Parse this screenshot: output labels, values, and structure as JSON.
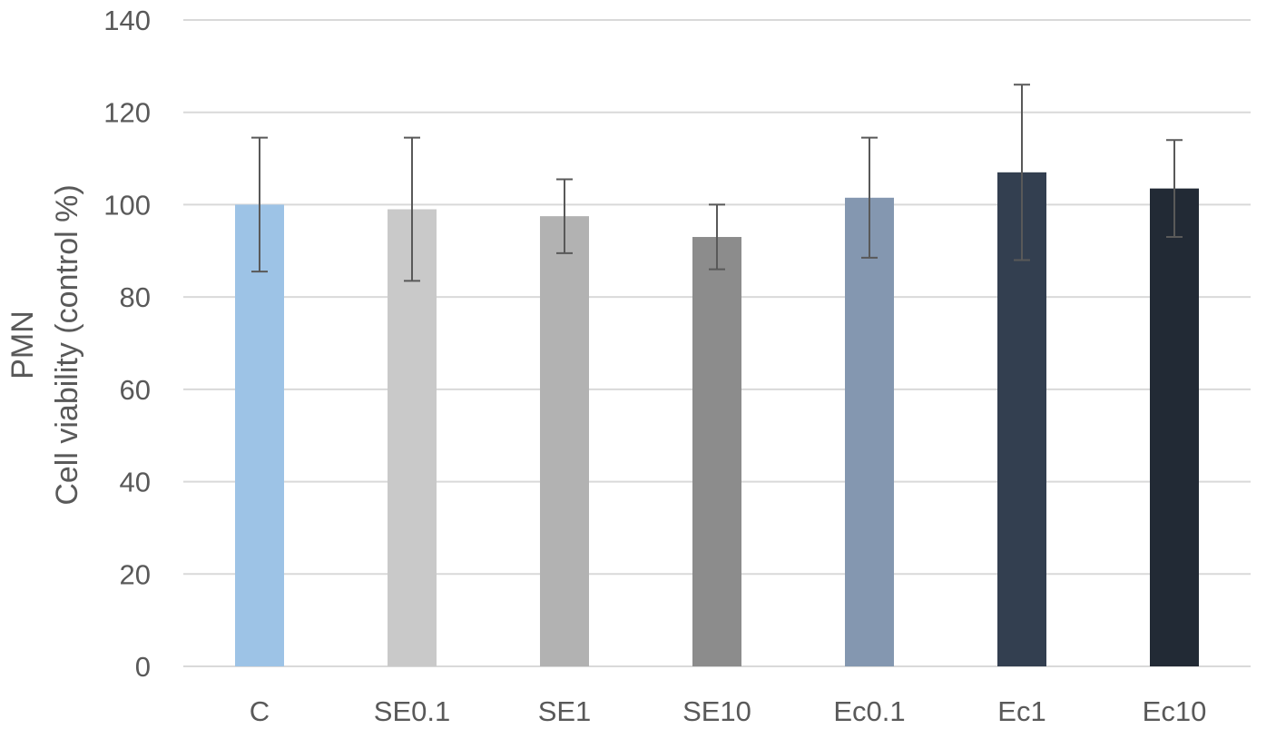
{
  "chart_data": {
    "type": "bar",
    "title": "",
    "ylabel_lines": [
      "PMN",
      "Cell viability (control %)"
    ],
    "xlabel": "",
    "categories": [
      "C",
      "SE0.1",
      "SE1",
      "SE10",
      "Ec0.1",
      "Ec1",
      "Ec10"
    ],
    "values": [
      100,
      99,
      97.5,
      93,
      101.5,
      107,
      103.5
    ],
    "error": [
      14.5,
      15.5,
      8,
      7,
      13,
      19,
      10.5
    ],
    "colors": [
      "#9dc3e6",
      "#c9c9c9",
      "#b2b2b2",
      "#8c8c8c",
      "#8497b0",
      "#333f50",
      "#222a35"
    ],
    "ylim": [
      0,
      140
    ],
    "yticks": [
      0,
      20,
      40,
      60,
      80,
      100,
      120,
      140
    ],
    "grid": true,
    "legend": "none"
  }
}
